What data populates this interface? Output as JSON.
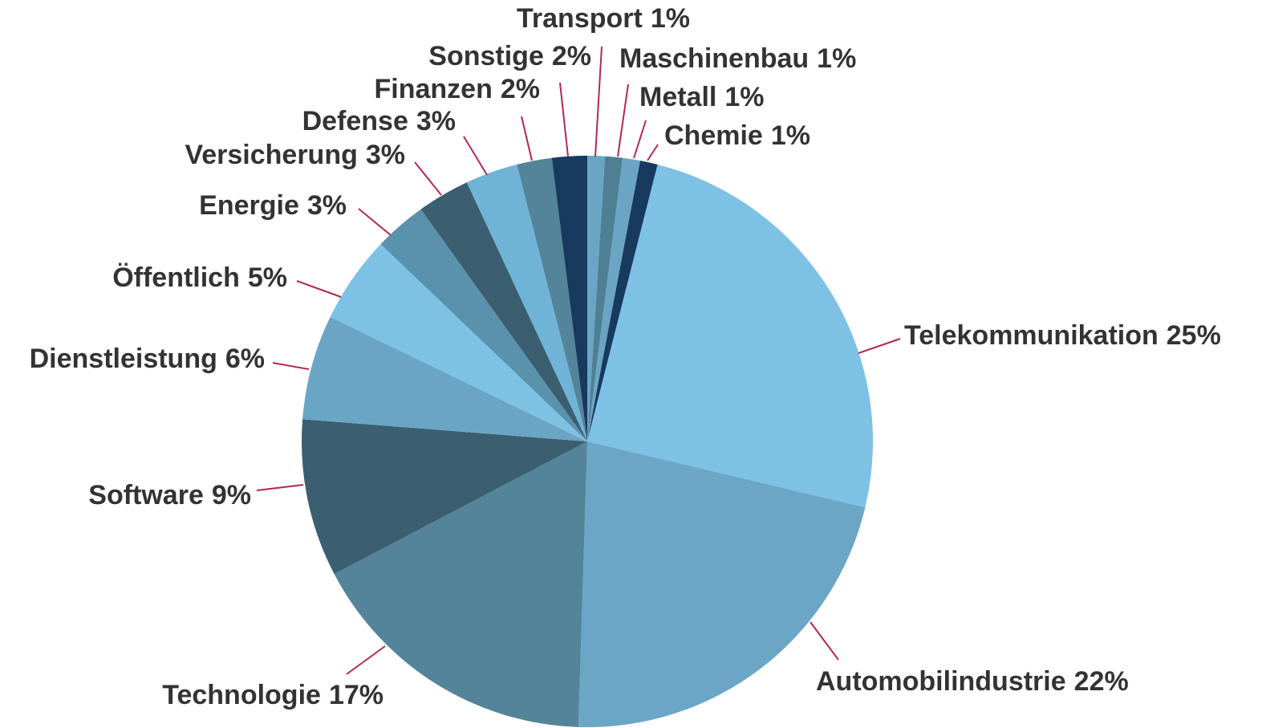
{
  "chart_data": {
    "type": "pie",
    "categories": [
      "Transport",
      "Maschinenbau",
      "Metall",
      "Chemie",
      "Telekommunikation",
      "Automobilindustrie",
      "Technologie",
      "Software",
      "Dienstleistung",
      "Öffentlich",
      "Energie",
      "Versicherung",
      "Defense",
      "Finanzen",
      "Sonstige"
    ],
    "values": [
      1,
      1,
      1,
      1,
      25,
      22,
      17,
      9,
      6,
      5,
      3,
      3,
      3,
      2,
      2
    ],
    "value_labels": [
      "1%",
      "1%",
      "1%",
      "1%",
      "25%",
      "22%",
      "17%",
      "9%",
      "6%",
      "5%",
      "3%",
      "3%",
      "3%",
      "2%",
      "2%"
    ],
    "colors": [
      "#6aa5c5",
      "#4f7f93",
      "#6aa5c5",
      "#173a5e",
      "#7dc1e5",
      "#6ba6c6",
      "#548499",
      "#3b5f70",
      "#6aa5c5",
      "#7dc1e5",
      "#5a92ad",
      "#3b5f70",
      "#6fb3d6",
      "#548499",
      "#173a5e"
    ]
  }
}
